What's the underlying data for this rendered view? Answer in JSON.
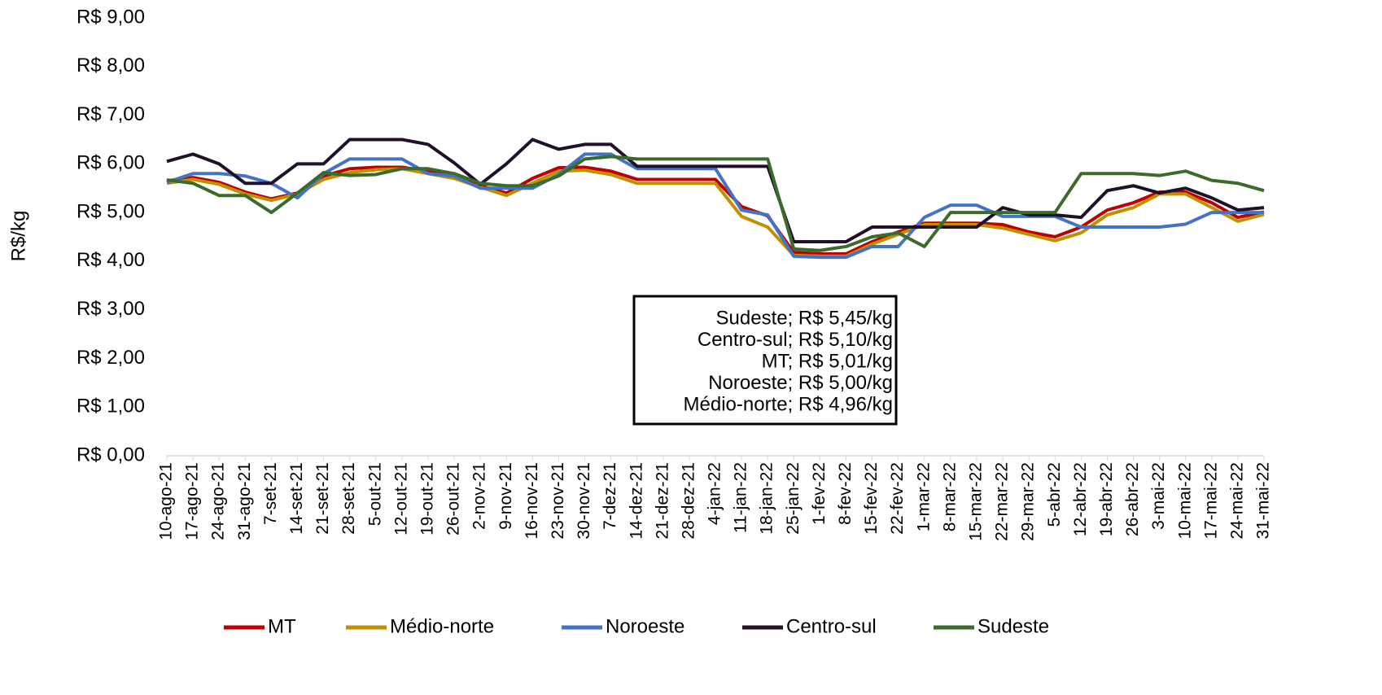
{
  "chart_data": {
    "type": "line",
    "y_label": "R$/kg",
    "categories": [
      "10-ago-21",
      "17-ago-21",
      "24-ago-21",
      "31-ago-21",
      "7-set-21",
      "14-set-21",
      "21-set-21",
      "28-set-21",
      "5-out-21",
      "12-out-21",
      "19-out-21",
      "26-out-21",
      "2-nov-21",
      "9-nov-21",
      "16-nov-21",
      "23-nov-21",
      "30-nov-21",
      "7-dez-21",
      "14-dez-21",
      "21-dez-21",
      "28-dez-21",
      "4-jan-22",
      "11-jan-22",
      "18-jan-22",
      "25-jan-22",
      "1-fev-22",
      "8-fev-22",
      "15-fev-22",
      "22-fev-22",
      "1-mar-22",
      "8-mar-22",
      "15-mar-22",
      "22-mar-22",
      "29-mar-22",
      "5-abr-22",
      "12-abr-22",
      "19-abr-22",
      "26-abr-22",
      "3-mai-22",
      "10-mai-22",
      "17-mai-22",
      "24-mai-22",
      "31-mai-22"
    ],
    "series": [
      {
        "name": "MT",
        "color": "#c00000",
        "values": [
          5.65,
          5.72,
          5.62,
          5.42,
          5.28,
          5.4,
          5.75,
          5.9,
          5.93,
          5.93,
          5.85,
          5.75,
          5.55,
          5.4,
          5.7,
          5.92,
          5.93,
          5.85,
          5.68,
          5.68,
          5.68,
          5.68,
          5.12,
          4.93,
          4.18,
          4.15,
          4.15,
          4.4,
          4.6,
          4.78,
          4.78,
          4.78,
          4.75,
          4.6,
          4.5,
          4.7,
          5.05,
          5.2,
          5.42,
          5.42,
          5.2,
          4.9,
          5.01
        ]
      },
      {
        "name": "Médio-norte",
        "color": "#bf9000",
        "values": [
          5.6,
          5.68,
          5.58,
          5.38,
          5.25,
          5.38,
          5.68,
          5.82,
          5.88,
          5.9,
          5.8,
          5.7,
          5.52,
          5.35,
          5.6,
          5.85,
          5.87,
          5.78,
          5.6,
          5.6,
          5.6,
          5.6,
          4.92,
          4.7,
          4.12,
          4.1,
          4.1,
          4.35,
          4.55,
          4.75,
          4.75,
          4.75,
          4.68,
          4.55,
          4.42,
          4.58,
          4.95,
          5.1,
          5.38,
          5.38,
          5.1,
          4.82,
          4.96
        ]
      },
      {
        "name": "Noroeste",
        "color": "#4472c4",
        "values": [
          5.62,
          5.8,
          5.8,
          5.75,
          5.6,
          5.3,
          5.8,
          6.1,
          6.1,
          6.1,
          5.8,
          5.75,
          5.5,
          5.5,
          5.5,
          5.78,
          6.2,
          6.2,
          5.9,
          5.9,
          5.9,
          5.9,
          5.05,
          4.95,
          4.1,
          4.08,
          4.08,
          4.3,
          4.3,
          4.9,
          5.15,
          5.15,
          4.92,
          4.92,
          4.92,
          4.7,
          4.7,
          4.7,
          4.7,
          4.76,
          5.0,
          5.0,
          5.0
        ]
      },
      {
        "name": "Centro-sul",
        "color": "#20102a",
        "values": [
          6.05,
          6.2,
          6.0,
          5.6,
          5.6,
          6.0,
          6.0,
          6.5,
          6.5,
          6.5,
          6.4,
          6.02,
          5.58,
          6.0,
          6.5,
          6.3,
          6.4,
          6.4,
          5.95,
          5.95,
          5.95,
          5.95,
          5.95,
          5.95,
          4.4,
          4.4,
          4.4,
          4.7,
          4.7,
          4.7,
          4.7,
          4.7,
          5.1,
          4.95,
          4.95,
          4.9,
          5.45,
          5.55,
          5.4,
          5.5,
          5.3,
          5.05,
          5.1
        ]
      },
      {
        "name": "Sudeste",
        "color": "#3b6b2a",
        "values": [
          5.67,
          5.6,
          5.35,
          5.35,
          5.0,
          5.4,
          5.82,
          5.76,
          5.78,
          5.9,
          5.9,
          5.8,
          5.6,
          5.55,
          5.55,
          5.75,
          6.1,
          6.15,
          6.1,
          6.1,
          6.1,
          6.1,
          6.1,
          6.1,
          4.25,
          4.22,
          4.3,
          4.5,
          4.58,
          4.3,
          5.0,
          5.0,
          5.0,
          5.0,
          5.0,
          5.8,
          5.8,
          5.8,
          5.76,
          5.85,
          5.66,
          5.6,
          5.45
        ]
      }
    ],
    "ylim": [
      0,
      9
    ],
    "yticks": [
      {
        "value": 0,
        "label": "R$ 0,00"
      },
      {
        "value": 1,
        "label": "R$ 1,00"
      },
      {
        "value": 2,
        "label": "R$ 2,00"
      },
      {
        "value": 3,
        "label": "R$ 3,00"
      },
      {
        "value": 4,
        "label": "R$ 4,00"
      },
      {
        "value": 5,
        "label": "R$ 5,00"
      },
      {
        "value": 6,
        "label": "R$ 6,00"
      },
      {
        "value": 7,
        "label": "R$ 7,00"
      },
      {
        "value": 8,
        "label": "R$ 8,00"
      },
      {
        "value": 9,
        "label": "R$ 9,00"
      }
    ],
    "grid": false,
    "legend": "bottom",
    "annotation": [
      "Sudeste; R$ 5,45/kg",
      "Centro-sul; R$ 5,10/kg",
      "MT; R$ 5,01/kg",
      "Noroeste; R$ 5,00/kg",
      "Médio-norte; R$ 4,96/kg"
    ]
  }
}
